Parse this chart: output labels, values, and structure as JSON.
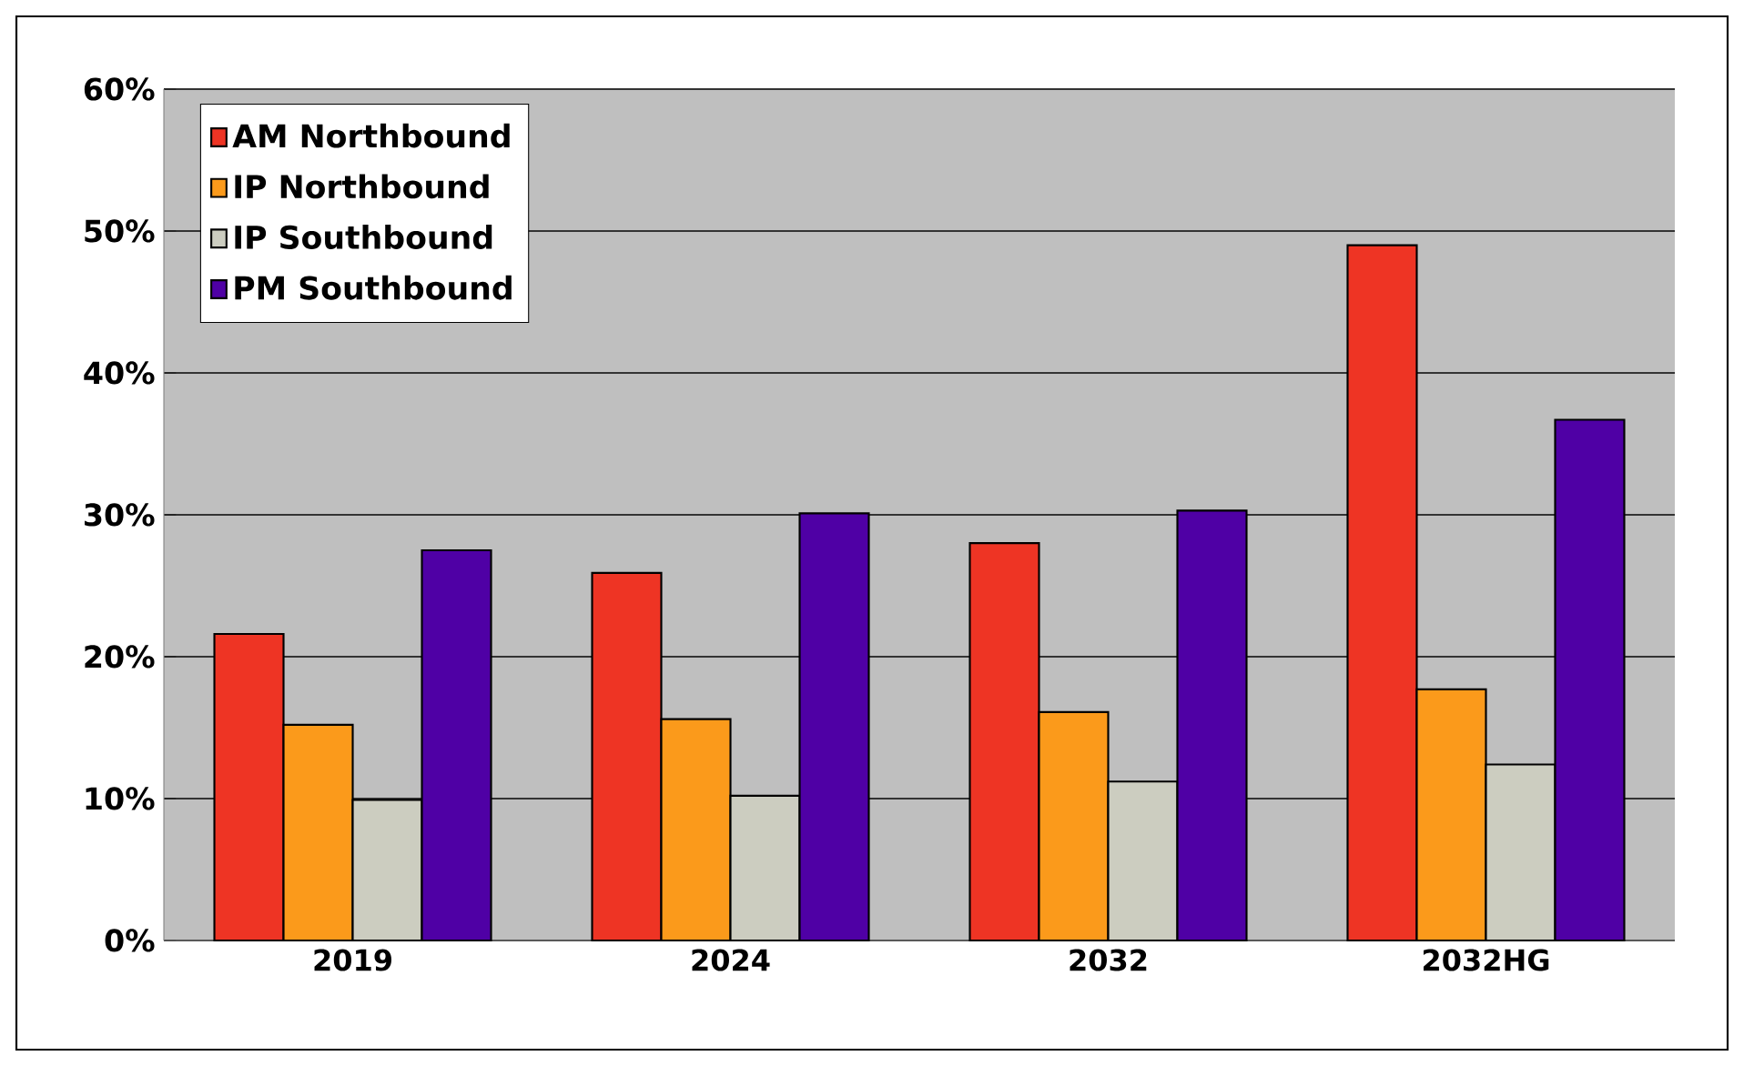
{
  "chart_data": {
    "type": "bar",
    "categories": [
      "2019",
      "2024",
      "2032",
      "2032HG"
    ],
    "series": [
      {
        "name": "AM Northbound",
        "color": "#ee3424",
        "values": [
          21.6,
          25.9,
          28.0,
          49.0
        ]
      },
      {
        "name": "IP Northbound",
        "color": "#fb9a1b",
        "values": [
          15.2,
          15.6,
          16.1,
          17.7
        ]
      },
      {
        "name": "IP Southbound",
        "color": "#cccdc0",
        "values": [
          9.9,
          10.2,
          11.2,
          12.4
        ]
      },
      {
        "name": "PM Southbound",
        "color": "#4f00a5",
        "values": [
          27.5,
          30.1,
          30.3,
          36.7
        ]
      }
    ],
    "ylim": [
      0,
      60
    ],
    "yticks": [
      {
        "value": 0,
        "label": "0%"
      },
      {
        "value": 10,
        "label": "10%"
      },
      {
        "value": 20,
        "label": "20%"
      },
      {
        "value": 30,
        "label": "30%"
      },
      {
        "value": 40,
        "label": "40%"
      },
      {
        "value": 50,
        "label": "50%"
      },
      {
        "value": 60,
        "label": "60%"
      }
    ],
    "grid": "y",
    "legend": "top left"
  }
}
